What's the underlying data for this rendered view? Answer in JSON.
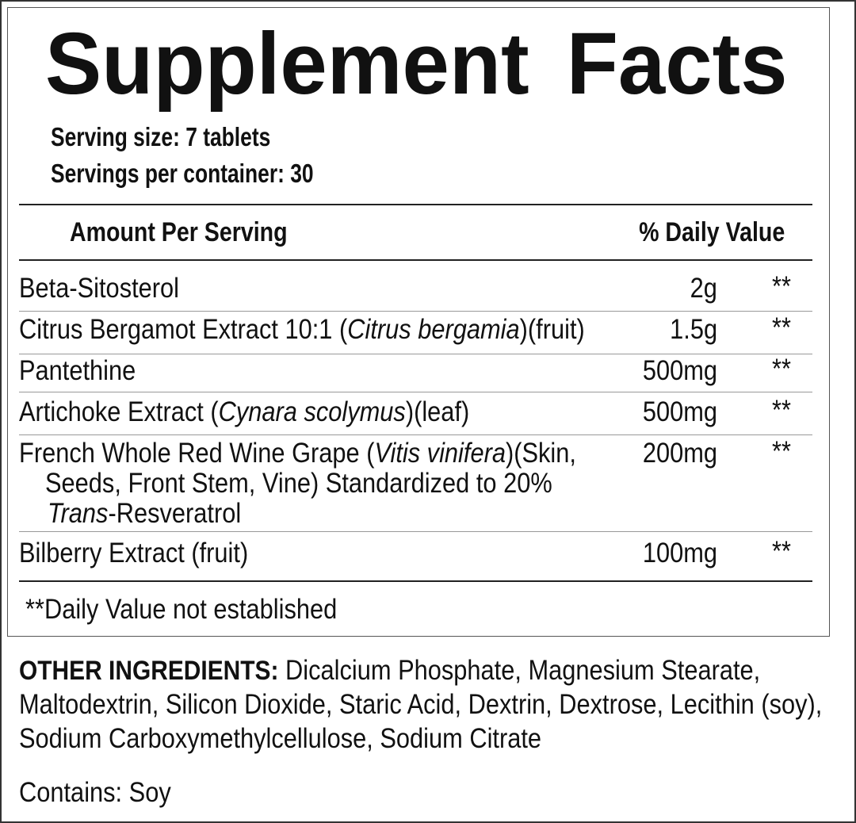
{
  "title": "Supplement Facts",
  "serving_size": "Serving size: 7 tablets",
  "servings_per_container": "Servings per container: 30",
  "header": {
    "amount_per_serving": "Amount Per Serving",
    "daily_value": "% Daily Value"
  },
  "rows": [
    {
      "lines": [
        [
          {
            "t": "Beta-Sitosterol"
          }
        ]
      ],
      "amount": "2g",
      "dv": "**"
    },
    {
      "lines": [
        [
          {
            "t": "Citrus Bergamot Extract 10:1 ("
          },
          {
            "t": "Citrus bergamia",
            "i": true
          },
          {
            "t": ")(fruit)"
          }
        ]
      ],
      "amount": "1.5g",
      "dv": "**"
    },
    {
      "lines": [
        [
          {
            "t": "Pantethine"
          }
        ]
      ],
      "amount": "500mg",
      "dv": "**"
    },
    {
      "lines": [
        [
          {
            "t": "Artichoke Extract ("
          },
          {
            "t": "Cynara scolymus",
            "i": true
          },
          {
            "t": ")(leaf)"
          }
        ]
      ],
      "amount": "500mg",
      "dv": "**"
    },
    {
      "lines": [
        [
          {
            "t": "French Whole Red Wine Grape ("
          },
          {
            "t": "Vitis vinifera",
            "i": true
          },
          {
            "t": ")(Skin,"
          }
        ],
        [
          {
            "t": "Seeds, Front Stem, Vine) Standardized to 20%"
          }
        ],
        [
          {
            "t": "Trans",
            "i": true
          },
          {
            "t": "-Resveratrol"
          }
        ]
      ],
      "amount": "200mg",
      "dv": "**"
    },
    {
      "lines": [
        [
          {
            "t": "Bilberry Extract (fruit)"
          }
        ]
      ],
      "amount": "100mg",
      "dv": "**"
    }
  ],
  "footnote": "**Daily Value not established",
  "other_ingredients": {
    "label": "OTHER INGREDIENTS:",
    "lines": [
      " Dicalcium Phosphate, Magnesium Stearate,",
      "Maltodextrin, Silicon Dioxide, Staric Acid, Dextrin, Dextrose, Lecithin (soy),",
      "Sodium Carboxymethylcellulose, Sodium Citrate"
    ]
  },
  "contains": "Contains: Soy"
}
